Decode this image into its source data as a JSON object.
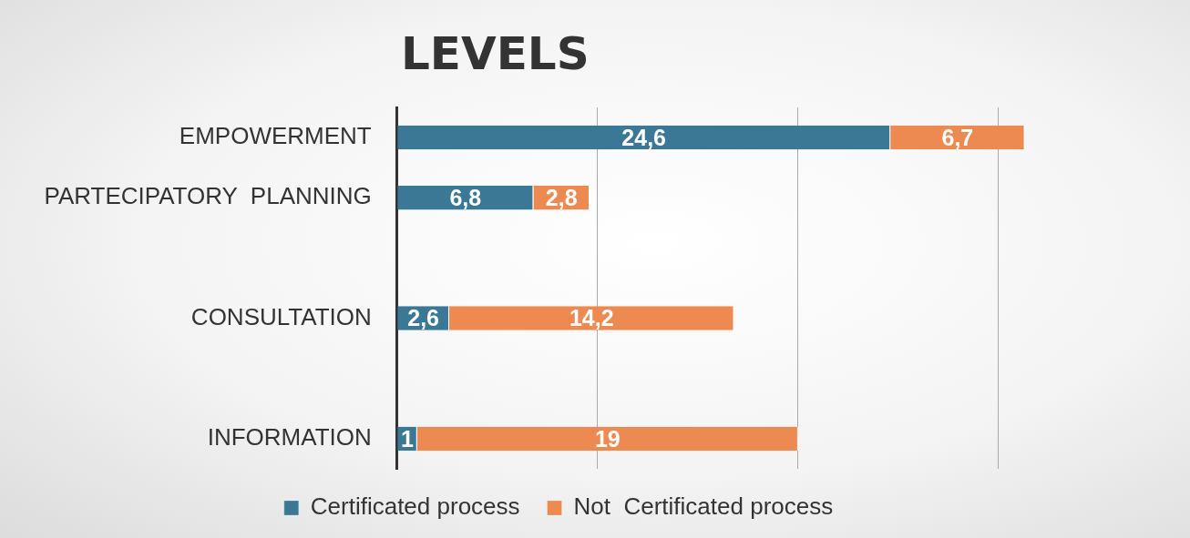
{
  "chart_data": {
    "type": "bar",
    "title": "LEVELS",
    "orientation": "horizontal",
    "stacked": true,
    "categories": [
      "EMPOWERMENT",
      "PARTECIPATORY  PLANNING",
      null,
      "CONSULTATION",
      null,
      "INFORMATION"
    ],
    "series": [
      {
        "name": "Certificated process",
        "color": "#3a7896",
        "values": [
          24.6,
          6.8,
          null,
          2.6,
          null,
          1
        ],
        "value_labels": [
          "24,6",
          "6,8",
          null,
          "2,6",
          null,
          "1"
        ]
      },
      {
        "name": "Not  Certificated process",
        "color": "#ed8a52",
        "values": [
          6.7,
          2.8,
          null,
          14.2,
          null,
          19
        ],
        "value_labels": [
          "6,7",
          "2,8",
          null,
          "14,2",
          null,
          "19"
        ]
      }
    ],
    "xticks": [
      {
        "value": 0,
        "label": null
      },
      {
        "value": 10,
        "label": null
      },
      {
        "value": 20,
        "label": null
      },
      {
        "value": 30,
        "label": null
      }
    ],
    "tick_labels": "y",
    "grid": "x",
    "legend": "bottom"
  }
}
